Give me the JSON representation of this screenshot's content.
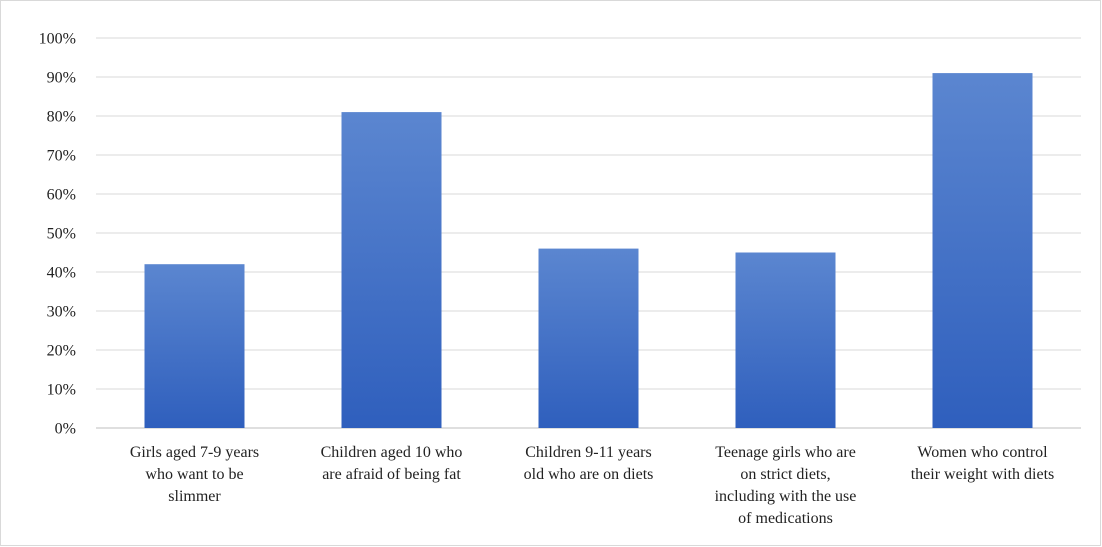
{
  "chart_data": {
    "type": "bar",
    "categories": [
      [
        "Girls aged 7-9 years",
        "who want to be",
        "slimmer"
      ],
      [
        "Children aged 10 who",
        "are afraid of being fat"
      ],
      [
        "Children 9-11 years",
        "old who are on diets"
      ],
      [
        "Teenage girls who are",
        "on strict diets,",
        "including with the use",
        "of medications"
      ],
      [
        "Women who control",
        "their weight with diets"
      ]
    ],
    "values": [
      42,
      81,
      46,
      45,
      91
    ],
    "ylim": [
      0,
      100
    ],
    "yticks": [
      0,
      10,
      20,
      30,
      40,
      50,
      60,
      70,
      80,
      90,
      100
    ],
    "ytick_labels": [
      "0%",
      "10%",
      "20%",
      "30%",
      "40%",
      "50%",
      "60%",
      "70%",
      "80%",
      "90%",
      "100%"
    ],
    "grid": true,
    "legend": "none",
    "bar_color_top": "#5b86d0",
    "bar_color_bottom": "#2f5fbd"
  }
}
